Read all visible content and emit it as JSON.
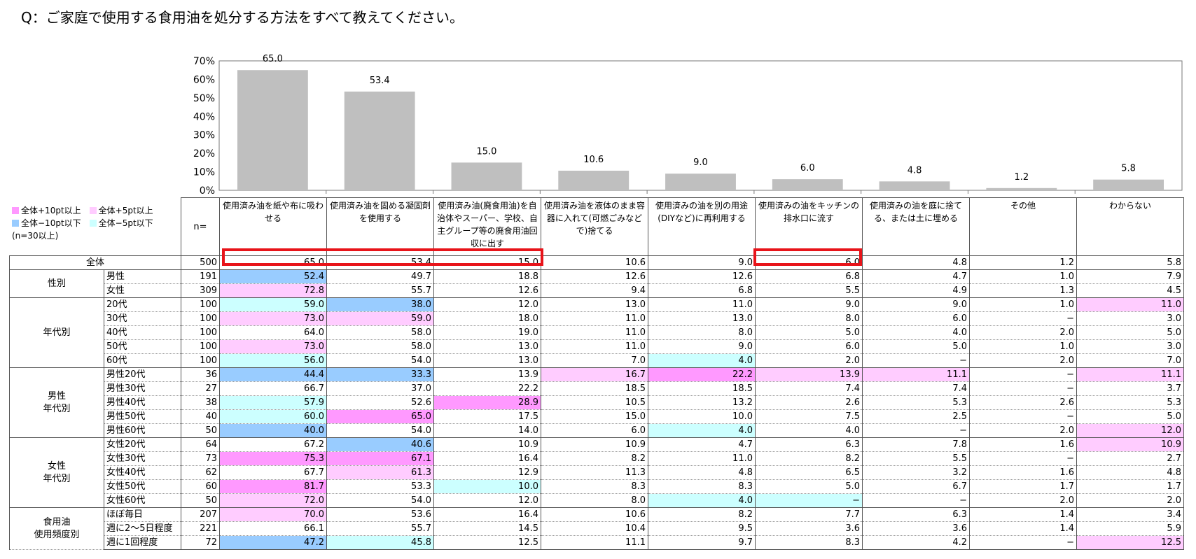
{
  "question": "Q：ご家庭で使用する食用油を処分する方法をすべて教えてください。",
  "legend": {
    "items": [
      {
        "label": "全体+10pt以上",
        "color": "#ff99ff"
      },
      {
        "label": "全体+5pt以上",
        "color": "#ffccff"
      },
      {
        "label": "全体−10pt以下",
        "color": "#99ccff"
      },
      {
        "label": "全体−5pt以下",
        "color": "#ccffff"
      }
    ],
    "note": "(n=30以上)"
  },
  "n_label": "n=",
  "columns": [
    "使用済み油を紙や布に吸わせる",
    "使用済み油を固める凝固剤を使用する",
    "使用済み油(廃食用油)を自治体やスーパー、学校、自主グループ等の廃食用油回収に出す",
    "使用済み油を液体のまま容器に入れて(可燃ごみなどで)捨てる",
    "使用済みの油を別の用途(DIYなど)に再利用する",
    "使用済みの油をキッチンの排水口に流す",
    "使用済みの油を庭に捨てる、または土に埋める",
    "その他",
    "わからない"
  ],
  "chart_data": {
    "type": "bar",
    "categories": [
      "使用済み油を紙や布に吸わせる",
      "使用済み油を固める凝固剤を使用する",
      "使用済み油(廃食用油)を自治体やスーパー、学校、自主グループ等の廃食用油回収に出す",
      "使用済み油を液体のまま容器に入れて(可燃ごみなどで)捨てる",
      "使用済みの油を別の用途(DIYなど)に再利用する",
      "使用済みの油をキッチンの排水口に流す",
      "使用済みの油を庭に捨てる、または土に埋める",
      "その他",
      "わからない"
    ],
    "values": [
      65.0,
      53.4,
      15.0,
      10.6,
      9.0,
      6.0,
      4.8,
      1.2,
      5.8
    ],
    "value_labels": [
      "65.0",
      "53.4",
      "15.0",
      "10.6",
      "9.0",
      "6.0",
      "4.8",
      "1.2",
      "5.8"
    ],
    "ylim": [
      0,
      70
    ],
    "yticks": [
      "0%",
      "10%",
      "20%",
      "30%",
      "40%",
      "50%",
      "60%",
      "70%"
    ],
    "bar_color": "#bfbfbf",
    "grid": false
  },
  "total": {
    "label": "全体",
    "n": "500",
    "values": [
      "65.0",
      "53.4",
      "15.0",
      "10.6",
      "9.0",
      "6.0",
      "4.8",
      "1.2",
      "5.8"
    ]
  },
  "groups": [
    {
      "name": "性別",
      "rows": [
        {
          "label": "男性",
          "n": "191",
          "values": [
            "52.4",
            "49.7",
            "18.8",
            "12.6",
            "12.6",
            "6.8",
            "4.7",
            "1.0",
            "7.9"
          ],
          "hl": [
            "m10",
            "",
            "",
            "",
            "",
            "",
            "",
            "",
            ""
          ]
        },
        {
          "label": "女性",
          "n": "309",
          "values": [
            "72.8",
            "55.7",
            "12.6",
            "9.4",
            "6.8",
            "5.5",
            "4.9",
            "1.3",
            "4.5"
          ],
          "hl": [
            "p5",
            "",
            "",
            "",
            "",
            "",
            "",
            "",
            ""
          ]
        }
      ]
    },
    {
      "name": "年代別",
      "rows": [
        {
          "label": "20代",
          "n": "100",
          "values": [
            "59.0",
            "38.0",
            "12.0",
            "13.0",
            "11.0",
            "9.0",
            "9.0",
            "1.0",
            "11.0"
          ],
          "hl": [
            "m5",
            "m10",
            "",
            "",
            "",
            "",
            "",
            "",
            "p5"
          ]
        },
        {
          "label": "30代",
          "n": "100",
          "values": [
            "73.0",
            "59.0",
            "18.0",
            "11.0",
            "13.0",
            "8.0",
            "6.0",
            "−",
            "3.0"
          ],
          "hl": [
            "p5",
            "p5",
            "",
            "",
            "",
            "",
            "",
            "",
            ""
          ]
        },
        {
          "label": "40代",
          "n": "100",
          "values": [
            "64.0",
            "58.0",
            "19.0",
            "11.0",
            "8.0",
            "5.0",
            "4.0",
            "2.0",
            "5.0"
          ],
          "hl": [
            "",
            "",
            "",
            "",
            "",
            "",
            "",
            "",
            ""
          ]
        },
        {
          "label": "50代",
          "n": "100",
          "values": [
            "73.0",
            "58.0",
            "13.0",
            "11.0",
            "9.0",
            "6.0",
            "5.0",
            "1.0",
            "3.0"
          ],
          "hl": [
            "p5",
            "",
            "",
            "",
            "",
            "",
            "",
            "",
            ""
          ]
        },
        {
          "label": "60代",
          "n": "100",
          "values": [
            "56.0",
            "54.0",
            "13.0",
            "7.0",
            "4.0",
            "2.0",
            "−",
            "2.0",
            "7.0"
          ],
          "hl": [
            "m5",
            "",
            "",
            "",
            "m5",
            "",
            "",
            "",
            ""
          ]
        }
      ]
    },
    {
      "name": "男性\n年代別",
      "rows": [
        {
          "label": "男性20代",
          "n": "36",
          "values": [
            "44.4",
            "33.3",
            "13.9",
            "16.7",
            "22.2",
            "13.9",
            "11.1",
            "−",
            "11.1"
          ],
          "hl": [
            "m10",
            "m10",
            "",
            "p5",
            "p10",
            "p5",
            "p5",
            "",
            "p5"
          ]
        },
        {
          "label": "男性30代",
          "n": "27",
          "values": [
            "66.7",
            "37.0",
            "22.2",
            "18.5",
            "18.5",
            "7.4",
            "7.4",
            "−",
            "3.7"
          ],
          "hl": [
            "",
            "",
            "",
            "",
            "",
            "",
            "",
            "",
            ""
          ]
        },
        {
          "label": "男性40代",
          "n": "38",
          "values": [
            "57.9",
            "52.6",
            "28.9",
            "10.5",
            "13.2",
            "2.6",
            "5.3",
            "2.6",
            "5.3"
          ],
          "hl": [
            "m5",
            "",
            "p10",
            "",
            "",
            "",
            "",
            "",
            ""
          ]
        },
        {
          "label": "男性50代",
          "n": "40",
          "values": [
            "60.0",
            "65.0",
            "17.5",
            "15.0",
            "10.0",
            "7.5",
            "2.5",
            "−",
            "5.0"
          ],
          "hl": [
            "m5",
            "p10",
            "",
            "",
            "",
            "",
            "",
            "",
            ""
          ]
        },
        {
          "label": "男性60代",
          "n": "50",
          "values": [
            "40.0",
            "54.0",
            "14.0",
            "6.0",
            "4.0",
            "4.0",
            "−",
            "2.0",
            "12.0"
          ],
          "hl": [
            "m10",
            "",
            "",
            "",
            "m5",
            "",
            "",
            "",
            "p5"
          ]
        }
      ]
    },
    {
      "name": "女性\n年代別",
      "rows": [
        {
          "label": "女性20代",
          "n": "64",
          "values": [
            "67.2",
            "40.6",
            "10.9",
            "10.9",
            "4.7",
            "6.3",
            "7.8",
            "1.6",
            "10.9"
          ],
          "hl": [
            "",
            "m10",
            "",
            "",
            "",
            "",
            "",
            "",
            "p5"
          ]
        },
        {
          "label": "女性30代",
          "n": "73",
          "values": [
            "75.3",
            "67.1",
            "16.4",
            "8.2",
            "11.0",
            "8.2",
            "5.5",
            "−",
            "2.7"
          ],
          "hl": [
            "p10",
            "p10",
            "",
            "",
            "",
            "",
            "",
            "",
            ""
          ]
        },
        {
          "label": "女性40代",
          "n": "62",
          "values": [
            "67.7",
            "61.3",
            "12.9",
            "11.3",
            "4.8",
            "6.5",
            "3.2",
            "1.6",
            "4.8"
          ],
          "hl": [
            "",
            "p5",
            "",
            "",
            "",
            "",
            "",
            "",
            ""
          ]
        },
        {
          "label": "女性50代",
          "n": "60",
          "values": [
            "81.7",
            "53.3",
            "10.0",
            "8.3",
            "8.3",
            "5.0",
            "6.7",
            "1.7",
            "1.7"
          ],
          "hl": [
            "p10",
            "",
            "m5",
            "",
            "",
            "",
            "",
            "",
            ""
          ]
        },
        {
          "label": "女性60代",
          "n": "50",
          "values": [
            "72.0",
            "54.0",
            "12.0",
            "8.0",
            "4.0",
            "−",
            "−",
            "2.0",
            "2.0"
          ],
          "hl": [
            "p5",
            "",
            "",
            "",
            "m5",
            "m5",
            "",
            "",
            ""
          ]
        }
      ]
    },
    {
      "name": "食用油\n使用頻度別",
      "rows": [
        {
          "label": "ほぼ毎日",
          "n": "207",
          "values": [
            "70.0",
            "53.6",
            "16.4",
            "10.6",
            "8.2",
            "7.7",
            "6.3",
            "1.4",
            "3.4"
          ],
          "hl": [
            "p5",
            "",
            "",
            "",
            "",
            "",
            "",
            "",
            ""
          ]
        },
        {
          "label": "週に2～5日程度",
          "n": "221",
          "values": [
            "66.1",
            "55.7",
            "14.5",
            "10.4",
            "9.5",
            "3.6",
            "3.6",
            "1.4",
            "5.9"
          ],
          "hl": [
            "",
            "",
            "",
            "",
            "",
            "",
            "",
            "",
            ""
          ]
        },
        {
          "label": "週に1回程度",
          "n": "72",
          "values": [
            "47.2",
            "45.8",
            "12.5",
            "11.1",
            "9.7",
            "8.3",
            "4.2",
            "−",
            "12.5"
          ],
          "hl": [
            "m10",
            "m5",
            "",
            "",
            "",
            "",
            "",
            "",
            "p5"
          ]
        }
      ]
    }
  ]
}
